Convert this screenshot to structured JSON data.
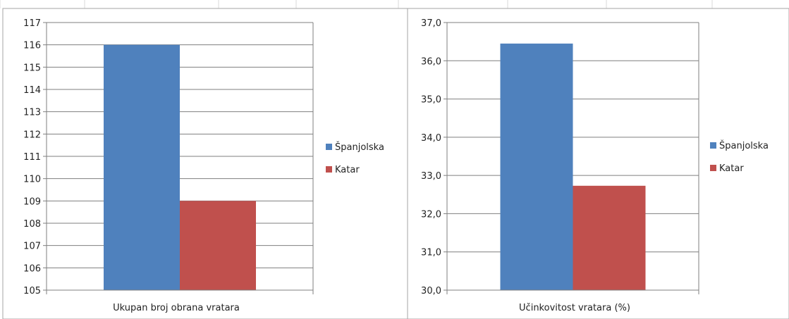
{
  "colors": {
    "grid": "#7f7f7f",
    "frame": "#a6a6a6",
    "sheet_lines": "#d9d9d9",
    "text": "#222222"
  },
  "chart_data": [
    {
      "type": "bar",
      "categories": [
        "Ukupan broj obrana vratara"
      ],
      "series": [
        {
          "name": "Španjolska",
          "color": "#4f81bd",
          "values": [
            116
          ]
        },
        {
          "name": "Katar",
          "color": "#c0504d",
          "values": [
            109
          ]
        }
      ],
      "ylim": [
        105,
        117
      ],
      "ytick_step": 1,
      "ytick_decimals": 0,
      "yticks": [
        "105",
        "106",
        "107",
        "108",
        "109",
        "110",
        "111",
        "112",
        "113",
        "114",
        "115",
        "116",
        "117"
      ],
      "grid": true,
      "legend": "right"
    },
    {
      "type": "bar",
      "categories": [
        "Učinkovitost vratara (%)"
      ],
      "series": [
        {
          "name": "Španjolska",
          "color": "#4f81bd",
          "values": [
            36.45
          ]
        },
        {
          "name": "Katar",
          "color": "#c0504d",
          "values": [
            32.73
          ]
        }
      ],
      "ylim": [
        30,
        37
      ],
      "ytick_step": 1,
      "ytick_decimals": 1,
      "yticks": [
        "30,0",
        "31,0",
        "32,0",
        "33,0",
        "34,0",
        "35,0",
        "36,0",
        "37,0"
      ],
      "grid": true,
      "legend": "right"
    }
  ]
}
